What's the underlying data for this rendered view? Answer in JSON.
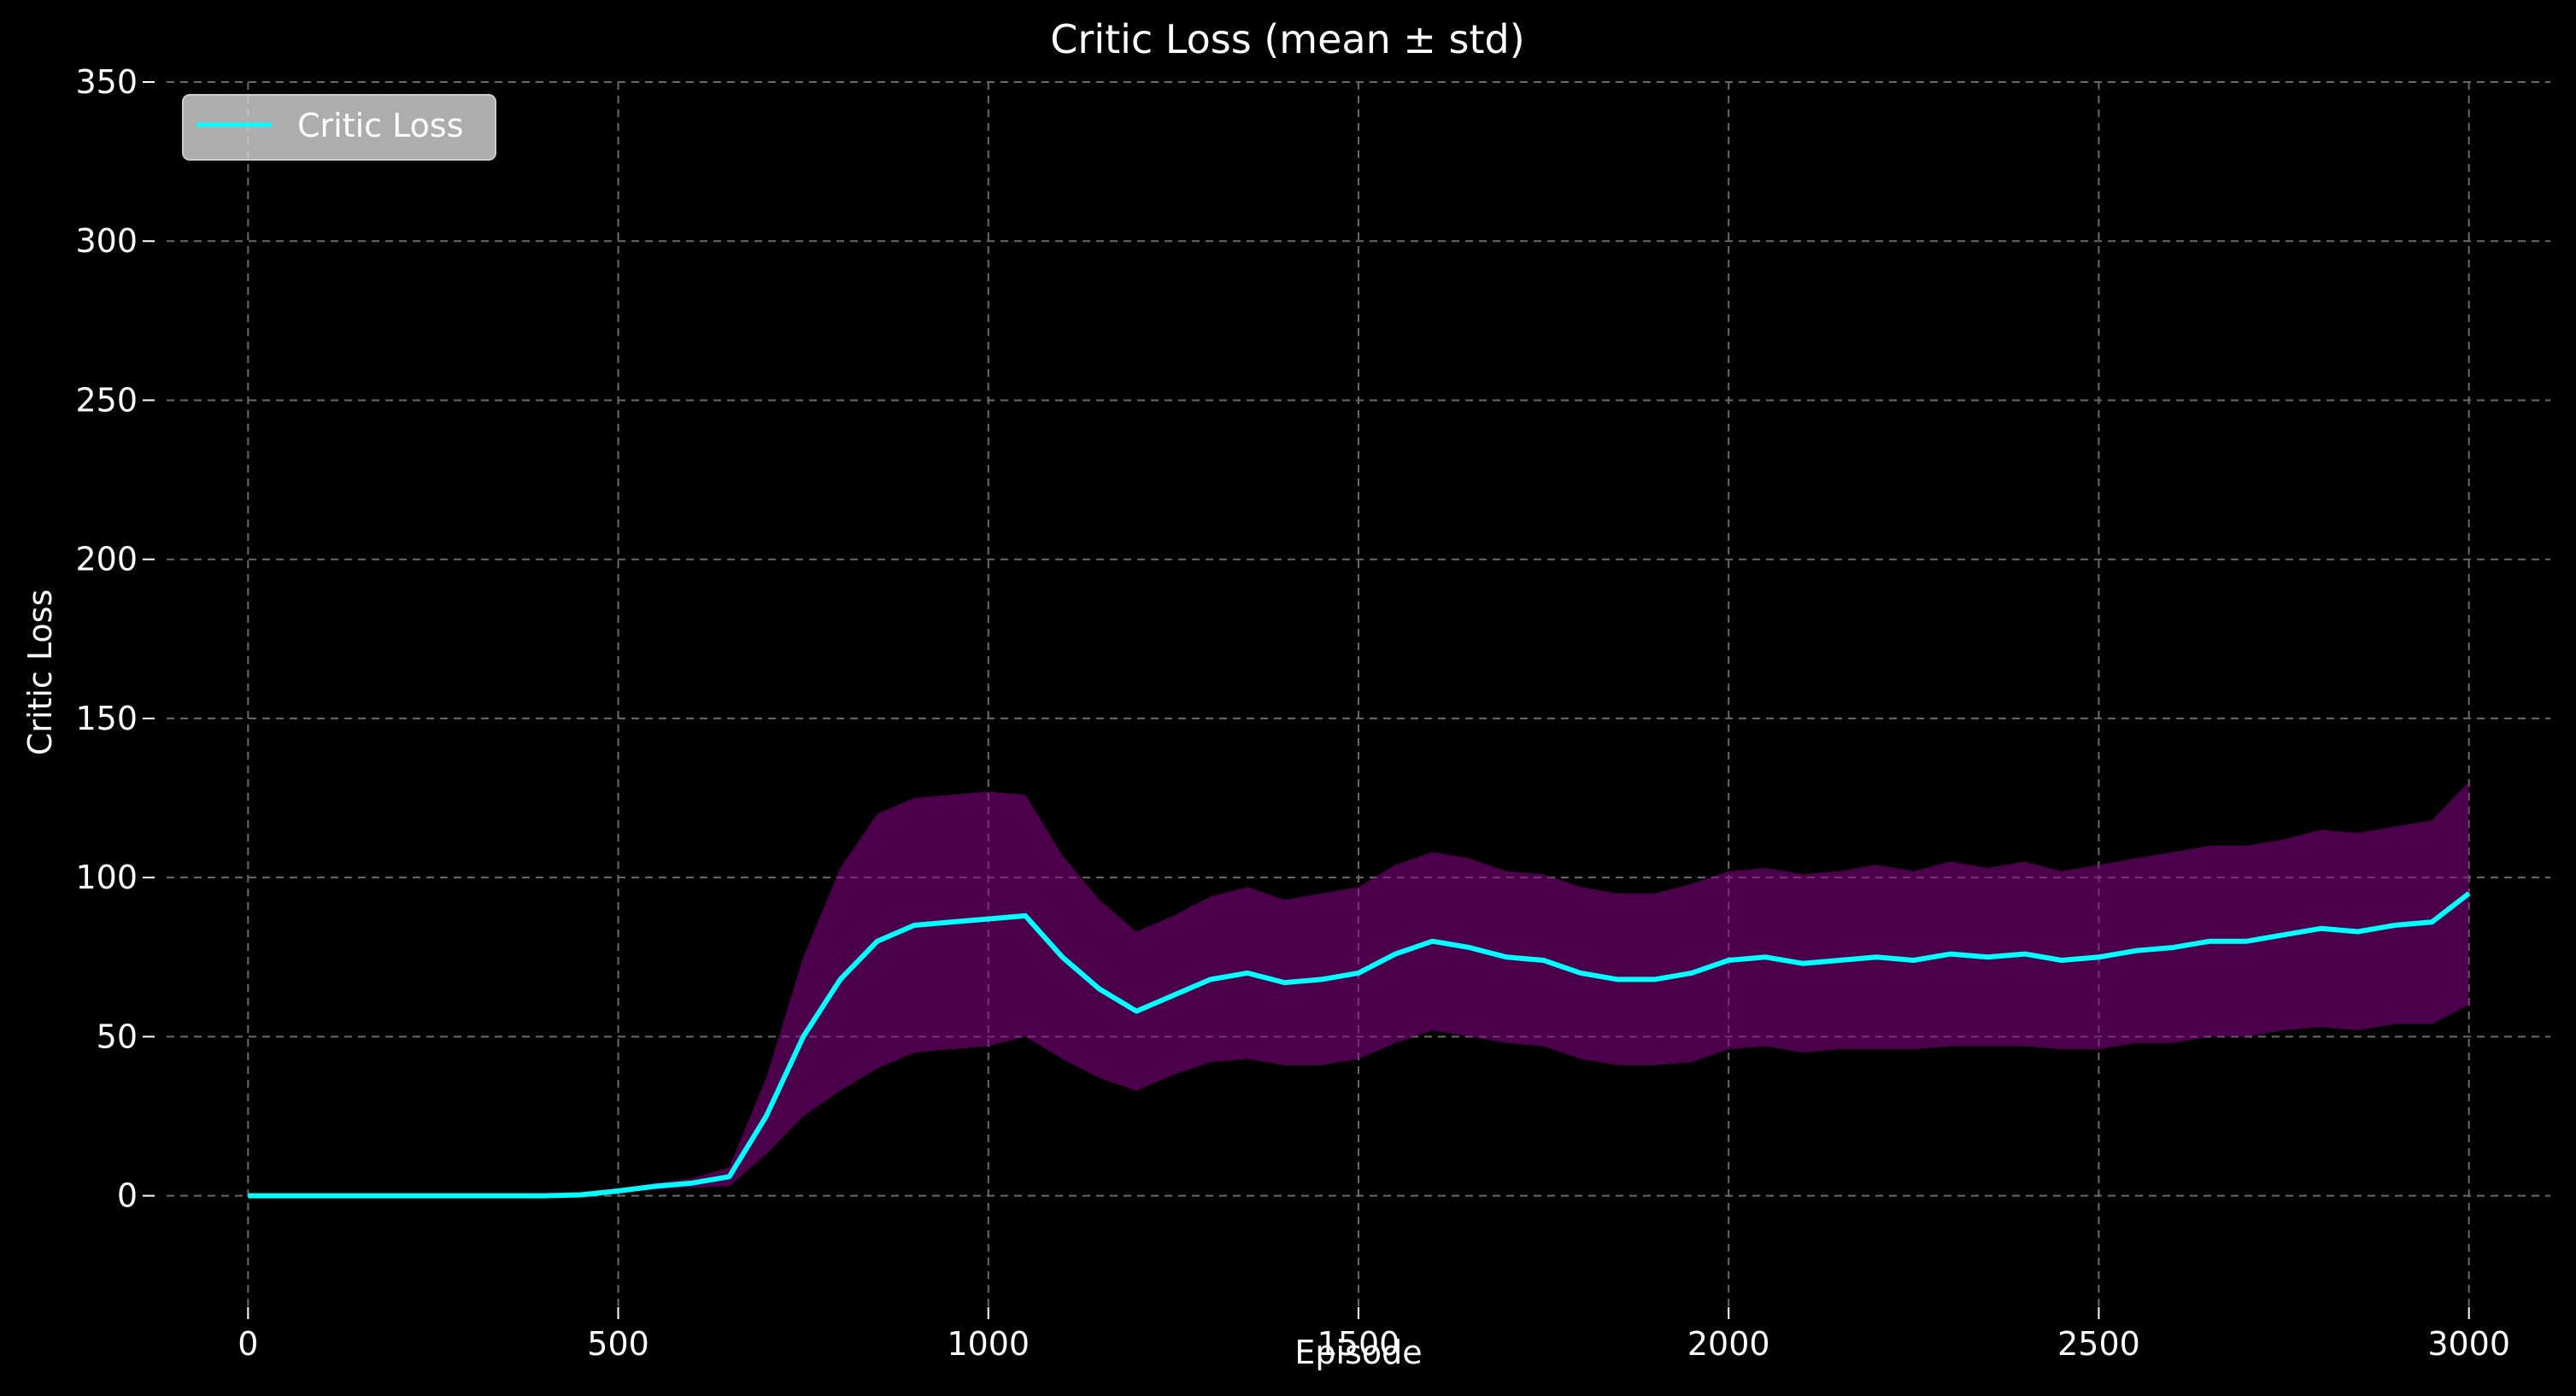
{
  "chart_data": {
    "type": "line",
    "title": "Critic Loss (mean ± std)",
    "xlabel": "Episode",
    "ylabel": "Critic Loss",
    "xlim": [
      -110,
      3110
    ],
    "ylim": [
      -35,
      350
    ],
    "xticks": [
      0,
      500,
      1000,
      1500,
      2000,
      2500,
      3000
    ],
    "yticks": [
      0,
      50,
      100,
      150,
      200,
      250,
      300,
      350
    ],
    "grid": true,
    "legend": {
      "position": "upper-left",
      "entries": [
        "Critic Loss"
      ]
    },
    "colors": {
      "background": "#000000",
      "mean_line": "#00ffff",
      "std_band": "#8b008b",
      "grid": "#6b6b6b",
      "text": "#ffffff"
    },
    "series": [
      {
        "name": "Critic Loss",
        "x": [
          0,
          100,
          200,
          300,
          400,
          450,
          500,
          550,
          600,
          650,
          700,
          750,
          800,
          850,
          900,
          950,
          1000,
          1050,
          1100,
          1150,
          1200,
          1250,
          1300,
          1350,
          1400,
          1450,
          1500,
          1550,
          1600,
          1650,
          1700,
          1750,
          1800,
          1850,
          1900,
          1950,
          2000,
          2050,
          2100,
          2150,
          2200,
          2250,
          2300,
          2350,
          2400,
          2450,
          2500,
          2550,
          2600,
          2650,
          2700,
          2750,
          2800,
          2850,
          2900,
          2950,
          3000
        ],
        "mean": [
          0,
          0,
          0,
          0,
          0,
          0.3,
          1.5,
          3,
          4,
          6,
          25,
          50,
          68,
          80,
          85,
          86,
          87,
          88,
          75,
          65,
          58,
          63,
          68,
          70,
          67,
          68,
          70,
          76,
          80,
          78,
          75,
          74,
          70,
          68,
          68,
          70,
          74,
          75,
          73,
          74,
          75,
          74,
          76,
          75,
          76,
          74,
          75,
          77,
          78,
          80,
          80,
          82,
          84,
          83,
          85,
          86,
          95
        ],
        "std": [
          0,
          0,
          0,
          0,
          0,
          0.1,
          0.5,
          1,
          1.5,
          3,
          12,
          25,
          35,
          40,
          40,
          40,
          40,
          38,
          32,
          28,
          25,
          25,
          26,
          27,
          26,
          27,
          27,
          28,
          28,
          28,
          27,
          27,
          27,
          27,
          27,
          28,
          28,
          28,
          28,
          28,
          29,
          28,
          29,
          28,
          29,
          28,
          29,
          29,
          30,
          30,
          30,
          30,
          31,
          31,
          31,
          32,
          35
        ]
      }
    ]
  }
}
